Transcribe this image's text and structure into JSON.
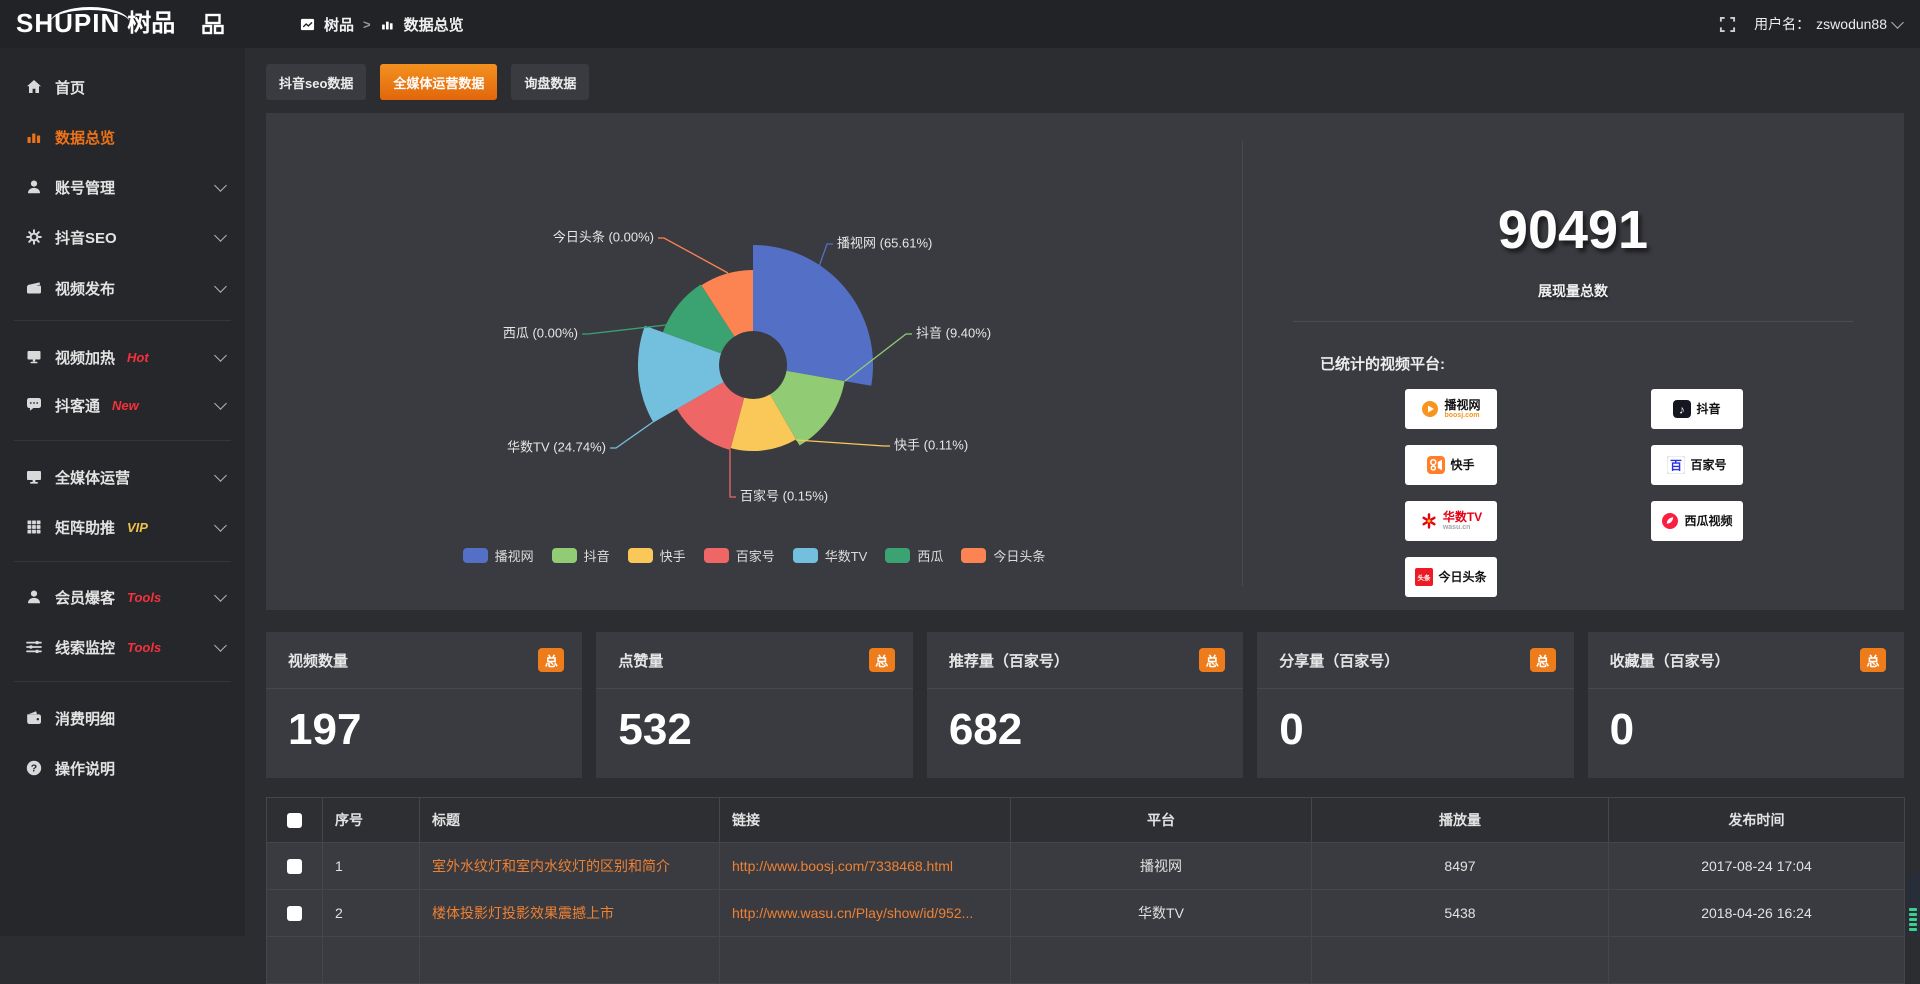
{
  "topbar": {
    "logo_en": "SHUPIN",
    "logo_cn": "树品",
    "breadcrumb": {
      "root": "树品",
      "sep": ">",
      "current": "数据总览"
    },
    "username_label": "用户名：",
    "username_value": "zswodun88"
  },
  "sidebar": {
    "items": [
      {
        "id": "home",
        "label": "首页",
        "icon": "home",
        "chevron": false,
        "active": false
      },
      {
        "id": "data-overview",
        "label": "数据总览",
        "icon": "chart",
        "chevron": false,
        "active": true
      },
      {
        "id": "account-management",
        "label": "账号管理",
        "icon": "user",
        "chevron": true,
        "active": false
      },
      {
        "id": "douyin-seo",
        "label": "抖音SEO",
        "icon": "gear",
        "chevron": true,
        "active": false
      },
      {
        "id": "video-publish",
        "label": "视频发布",
        "icon": "video",
        "chevron": true,
        "active": false
      },
      {
        "id": "video-heat",
        "label": "视频加热",
        "icon": "screen",
        "chevron": true,
        "active": false,
        "badge": "Hot",
        "badge_color": "#f5313d"
      },
      {
        "id": "douketong",
        "label": "抖客通",
        "icon": "chat",
        "chevron": true,
        "active": false,
        "badge": "New",
        "badge_color": "#f5313d"
      },
      {
        "id": "all-media",
        "label": "全媒体运营",
        "icon": "monitor",
        "chevron": true,
        "active": false
      },
      {
        "id": "matrix-boost",
        "label": "矩阵助推",
        "icon": "grid",
        "chevron": true,
        "active": false,
        "badge": "VIP",
        "badge_color": "#f0c14b"
      },
      {
        "id": "member-baoke",
        "label": "会员爆客",
        "icon": "user",
        "chevron": true,
        "active": false,
        "badge": "Tools",
        "badge_color": "#f5313d"
      },
      {
        "id": "clue-monitor",
        "label": "线索监控",
        "icon": "sliders",
        "chevron": true,
        "active": false,
        "badge": "Tools",
        "badge_color": "#f5313d"
      },
      {
        "id": "consume-detail",
        "label": "消费明细",
        "icon": "wallet",
        "chevron": false,
        "active": false
      },
      {
        "id": "operation-guide",
        "label": "操作说明",
        "icon": "question",
        "chevron": false,
        "active": false
      }
    ]
  },
  "tabs": [
    {
      "id": "douyin-seo-data",
      "label": "抖音seo数据",
      "active": false
    },
    {
      "id": "all-media-data",
      "label": "全媒体运营数据",
      "active": true
    },
    {
      "id": "inquiry-data",
      "label": "询盘数据",
      "active": false
    }
  ],
  "chart_data": {
    "type": "pie",
    "subtype": "nightingale-rose",
    "title": "",
    "legend_position": "bottom",
    "series": [
      {
        "name": "播视网",
        "pct": "65.61%",
        "value": 65.61,
        "color": "#5470c6"
      },
      {
        "name": "抖音",
        "pct": "9.40%",
        "value": 9.4,
        "color": "#91cc75"
      },
      {
        "name": "快手",
        "pct": "0.11%",
        "value": 0.11,
        "color": "#fac858"
      },
      {
        "name": "百家号",
        "pct": "0.15%",
        "value": 0.15,
        "color": "#ee6666"
      },
      {
        "name": "华数TV",
        "pct": "24.74%",
        "value": 24.74,
        "color": "#73c0de"
      },
      {
        "name": "西瓜",
        "pct": "0.00%",
        "value": 0.0,
        "color": "#3ba272"
      },
      {
        "name": "今日头条",
        "pct": "0.00%",
        "value": 0.0,
        "color": "#fc8452"
      }
    ]
  },
  "summary": {
    "total_value": "90491",
    "total_label": "展现量总数",
    "platforms_label": "已统计的视频平台:",
    "platforms": [
      {
        "icon": "boosj",
        "name": "播视网",
        "name_color": "#111111",
        "sub": "boosj.com",
        "sub_color": "#f7941d"
      },
      {
        "icon": "douyin",
        "name": "抖音",
        "name_color": "#111111"
      },
      {
        "icon": "kuaishou",
        "name": "快手",
        "name_color": "#111111"
      },
      {
        "icon": "baijiahao",
        "name": "百家号",
        "name_color": "#111111"
      },
      {
        "icon": "wasu",
        "name": "华数TV",
        "name_color": "#e60012",
        "sub": "wasu.cn",
        "sub_color": "#a5a5a5"
      },
      {
        "icon": "xigua",
        "name": "西瓜视频",
        "name_color": "#111111"
      },
      {
        "icon": "toutiao",
        "name": "今日头条",
        "name_color": "#111111"
      }
    ]
  },
  "stat_cards": [
    {
      "label": "视频数量",
      "badge": "总",
      "value": "197"
    },
    {
      "label": "点赞量",
      "badge": "总",
      "value": "532"
    },
    {
      "label": "推荐量（百家号）",
      "badge": "总",
      "value": "682"
    },
    {
      "label": "分享量（百家号）",
      "badge": "总",
      "value": "0"
    },
    {
      "label": "收藏量（百家号）",
      "badge": "总",
      "value": "0"
    }
  ],
  "table": {
    "headers": [
      "序号",
      "标题",
      "链接",
      "平台",
      "播放量",
      "发布时间"
    ],
    "rows": [
      {
        "index": "1",
        "title": "室外水纹灯和室内水纹灯的区别和简介",
        "link": "http://www.boosj.com/7338468.html",
        "platform": "播视网",
        "views": "8497",
        "time": "2017-08-24 17:04"
      },
      {
        "index": "2",
        "title": "楼体投影灯投影效果震撼上市",
        "link": "http://www.wasu.cn/Play/show/id/952...",
        "platform": "华数TV",
        "views": "5438",
        "time": "2018-04-26 16:24"
      }
    ]
  },
  "accent_color": "#ed7318",
  "link_color": "#ee8133"
}
